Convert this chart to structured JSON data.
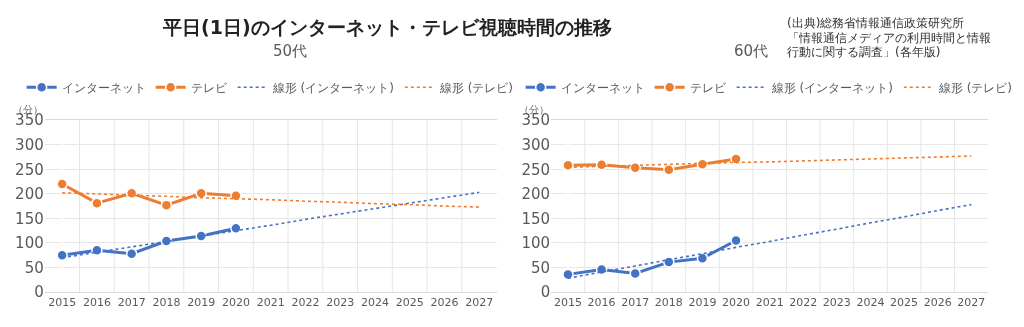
{
  "chart_data": [
    {
      "type": "line",
      "title": "平日(1日)のインターネット・テレビ視聴時間の推移",
      "subtitle": "50代",
      "ylabel": "（分）",
      "annotations": [
        "(出典)総務省情報通信政策研究所",
        "「情報通信メディアの利用時間と情報",
        "行動に関する調査」(各年版)"
      ],
      "categories": [
        "2015",
        "2016",
        "2017",
        "2018",
        "2019",
        "2020",
        "2021",
        "2022",
        "2023",
        "2024",
        "2025",
        "2026",
        "2027"
      ],
      "series": [
        {
          "name": "インターネット",
          "color": "#4472c4",
          "marker": "circle",
          "line_style": "solid",
          "values": [
            75,
            85,
            78,
            104,
            114,
            130,
            null,
            null,
            null,
            null,
            null,
            null,
            null
          ]
        },
        {
          "name": "テレビ",
          "color": "#ed7d31",
          "marker": "circle",
          "line_style": "solid",
          "values": [
            220,
            181,
            201,
            177,
            201,
            196,
            null,
            null,
            null,
            null,
            null,
            null,
            null
          ]
        },
        {
          "name": "線形 (インターネット)",
          "color": "#4472c4",
          "marker": "none",
          "line_style": "dotted",
          "values": [
            70,
            81,
            92,
            103,
            114,
            125,
            136,
            148,
            159,
            170,
            181,
            192,
            203
          ]
        },
        {
          "name": "線形 (テレビ)",
          "color": "#ed7d31",
          "marker": "none",
          "line_style": "dotted",
          "values": [
            202,
            200,
            197,
            195,
            192,
            190,
            188,
            185,
            183,
            180,
            178,
            175,
            173
          ]
        }
      ],
      "ylim": [
        0,
        350
      ],
      "yticks": [
        0,
        50,
        100,
        150,
        200,
        250,
        300,
        350
      ],
      "grid": true,
      "legend": "top"
    },
    {
      "type": "line",
      "subtitle": "60代",
      "ylabel": "（分）",
      "categories": [
        "2015",
        "2016",
        "2017",
        "2018",
        "2019",
        "2020",
        "2021",
        "2022",
        "2023",
        "2024",
        "2025",
        "2026",
        "2027"
      ],
      "series": [
        {
          "name": "インターネット",
          "color": "#4472c4",
          "marker": "circle",
          "line_style": "solid",
          "values": [
            36,
            46,
            38,
            61,
            69,
            105,
            null,
            null,
            null,
            null,
            null,
            null,
            null
          ]
        },
        {
          "name": "テレビ",
          "color": "#ed7d31",
          "marker": "circle",
          "line_style": "solid",
          "values": [
            258,
            259,
            253,
            249,
            260,
            271,
            null,
            null,
            null,
            null,
            null,
            null,
            null
          ]
        },
        {
          "name": "線形 (インターネット)",
          "color": "#4472c4",
          "marker": "none",
          "line_style": "dotted",
          "values": [
            28,
            41,
            53,
            66,
            78,
            91,
            103,
            116,
            128,
            141,
            153,
            166,
            178
          ]
        },
        {
          "name": "線形 (テレビ)",
          "color": "#ed7d31",
          "marker": "none",
          "line_style": "dotted",
          "values": [
            254,
            256,
            258,
            260,
            262,
            264,
            265,
            267,
            269,
            271,
            273,
            275,
            277
          ]
        }
      ],
      "ylim": [
        0,
        350
      ],
      "yticks": [
        0,
        50,
        100,
        150,
        200,
        250,
        300,
        350
      ],
      "grid": true,
      "legend": "top"
    }
  ]
}
